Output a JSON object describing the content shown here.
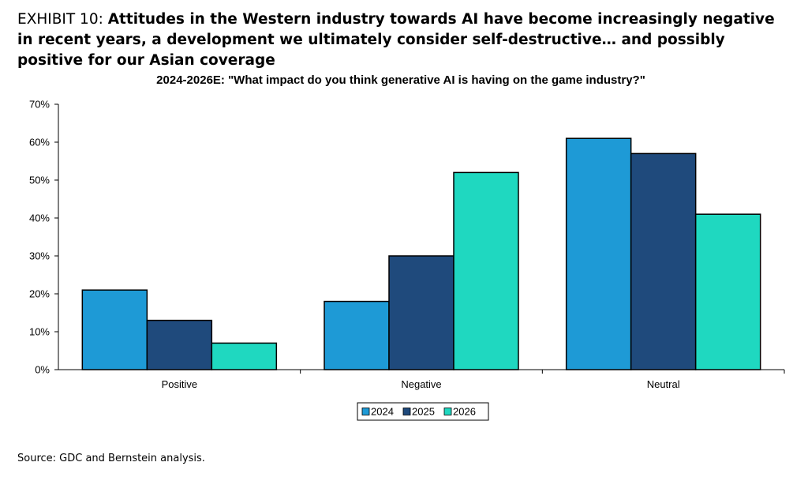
{
  "exhibit": {
    "label": "EXHIBIT 10:",
    "headline": "Attitudes in the Western industry towards AI have become increasingly negative in recent years, a development we ultimately consider self-destructive… and possibly positive for our Asian coverage"
  },
  "source": "Source: GDC and Bernstein analysis.",
  "chart_data": {
    "type": "bar",
    "title": "2024-2026E: \"What impact do you think generative AI is having on the game industry?\"",
    "xlabel": "",
    "ylabel": "",
    "categories": [
      "Positive",
      "Negative",
      "Neutral"
    ],
    "series": [
      {
        "name": "2024",
        "color": "#1e9ad6",
        "values": [
          21,
          18,
          61
        ]
      },
      {
        "name": "2025",
        "color": "#1f4a7c",
        "values": [
          13,
          30,
          57
        ]
      },
      {
        "name": "2026",
        "color": "#1fd8c0",
        "values": [
          7,
          52,
          41
        ]
      }
    ],
    "ylim": [
      0,
      70
    ],
    "yticks": [
      0,
      10,
      20,
      30,
      40,
      50,
      60,
      70
    ],
    "ytick_format": "percent",
    "grid": false,
    "legend_position": "bottom-center"
  }
}
